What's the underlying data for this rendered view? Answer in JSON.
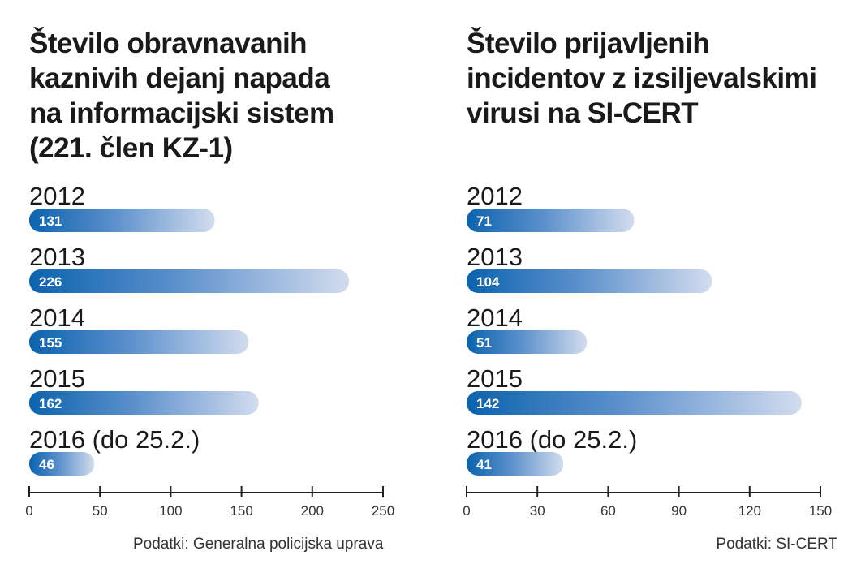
{
  "colors": {
    "bar_start": "#0b63ae",
    "bar_mid": "#5a8fcb",
    "bar_end": "#d2dcee",
    "axis": "#222222"
  },
  "chart_data": [
    {
      "type": "bar",
      "orientation": "horizontal",
      "title": "Število obravnavanih\nkaznivih dejanj napada\nna informacijski sistem\n(221. člen KZ-1)",
      "categories": [
        "2012",
        "2013",
        "2014",
        "2015",
        "2016 (do 25.2.)"
      ],
      "values": [
        131,
        226,
        155,
        162,
        46
      ],
      "xlim": [
        0,
        250
      ],
      "xticks": [
        0,
        50,
        100,
        150,
        200,
        250
      ],
      "grid": false,
      "source": "Podatki: Generalna policijska uprava"
    },
    {
      "type": "bar",
      "orientation": "horizontal",
      "title": "Število prijavljenih\nincidentov z izsiljevalskimi\nvirusi na SI-CERT",
      "categories": [
        "2012",
        "2013",
        "2014",
        "2015",
        "2016 (do 25.2.)"
      ],
      "values": [
        71,
        104,
        51,
        142,
        41
      ],
      "xlim": [
        0,
        150
      ],
      "xticks": [
        0,
        30,
        60,
        90,
        120,
        150
      ],
      "grid": false,
      "source": "Podatki: SI-CERT"
    }
  ]
}
